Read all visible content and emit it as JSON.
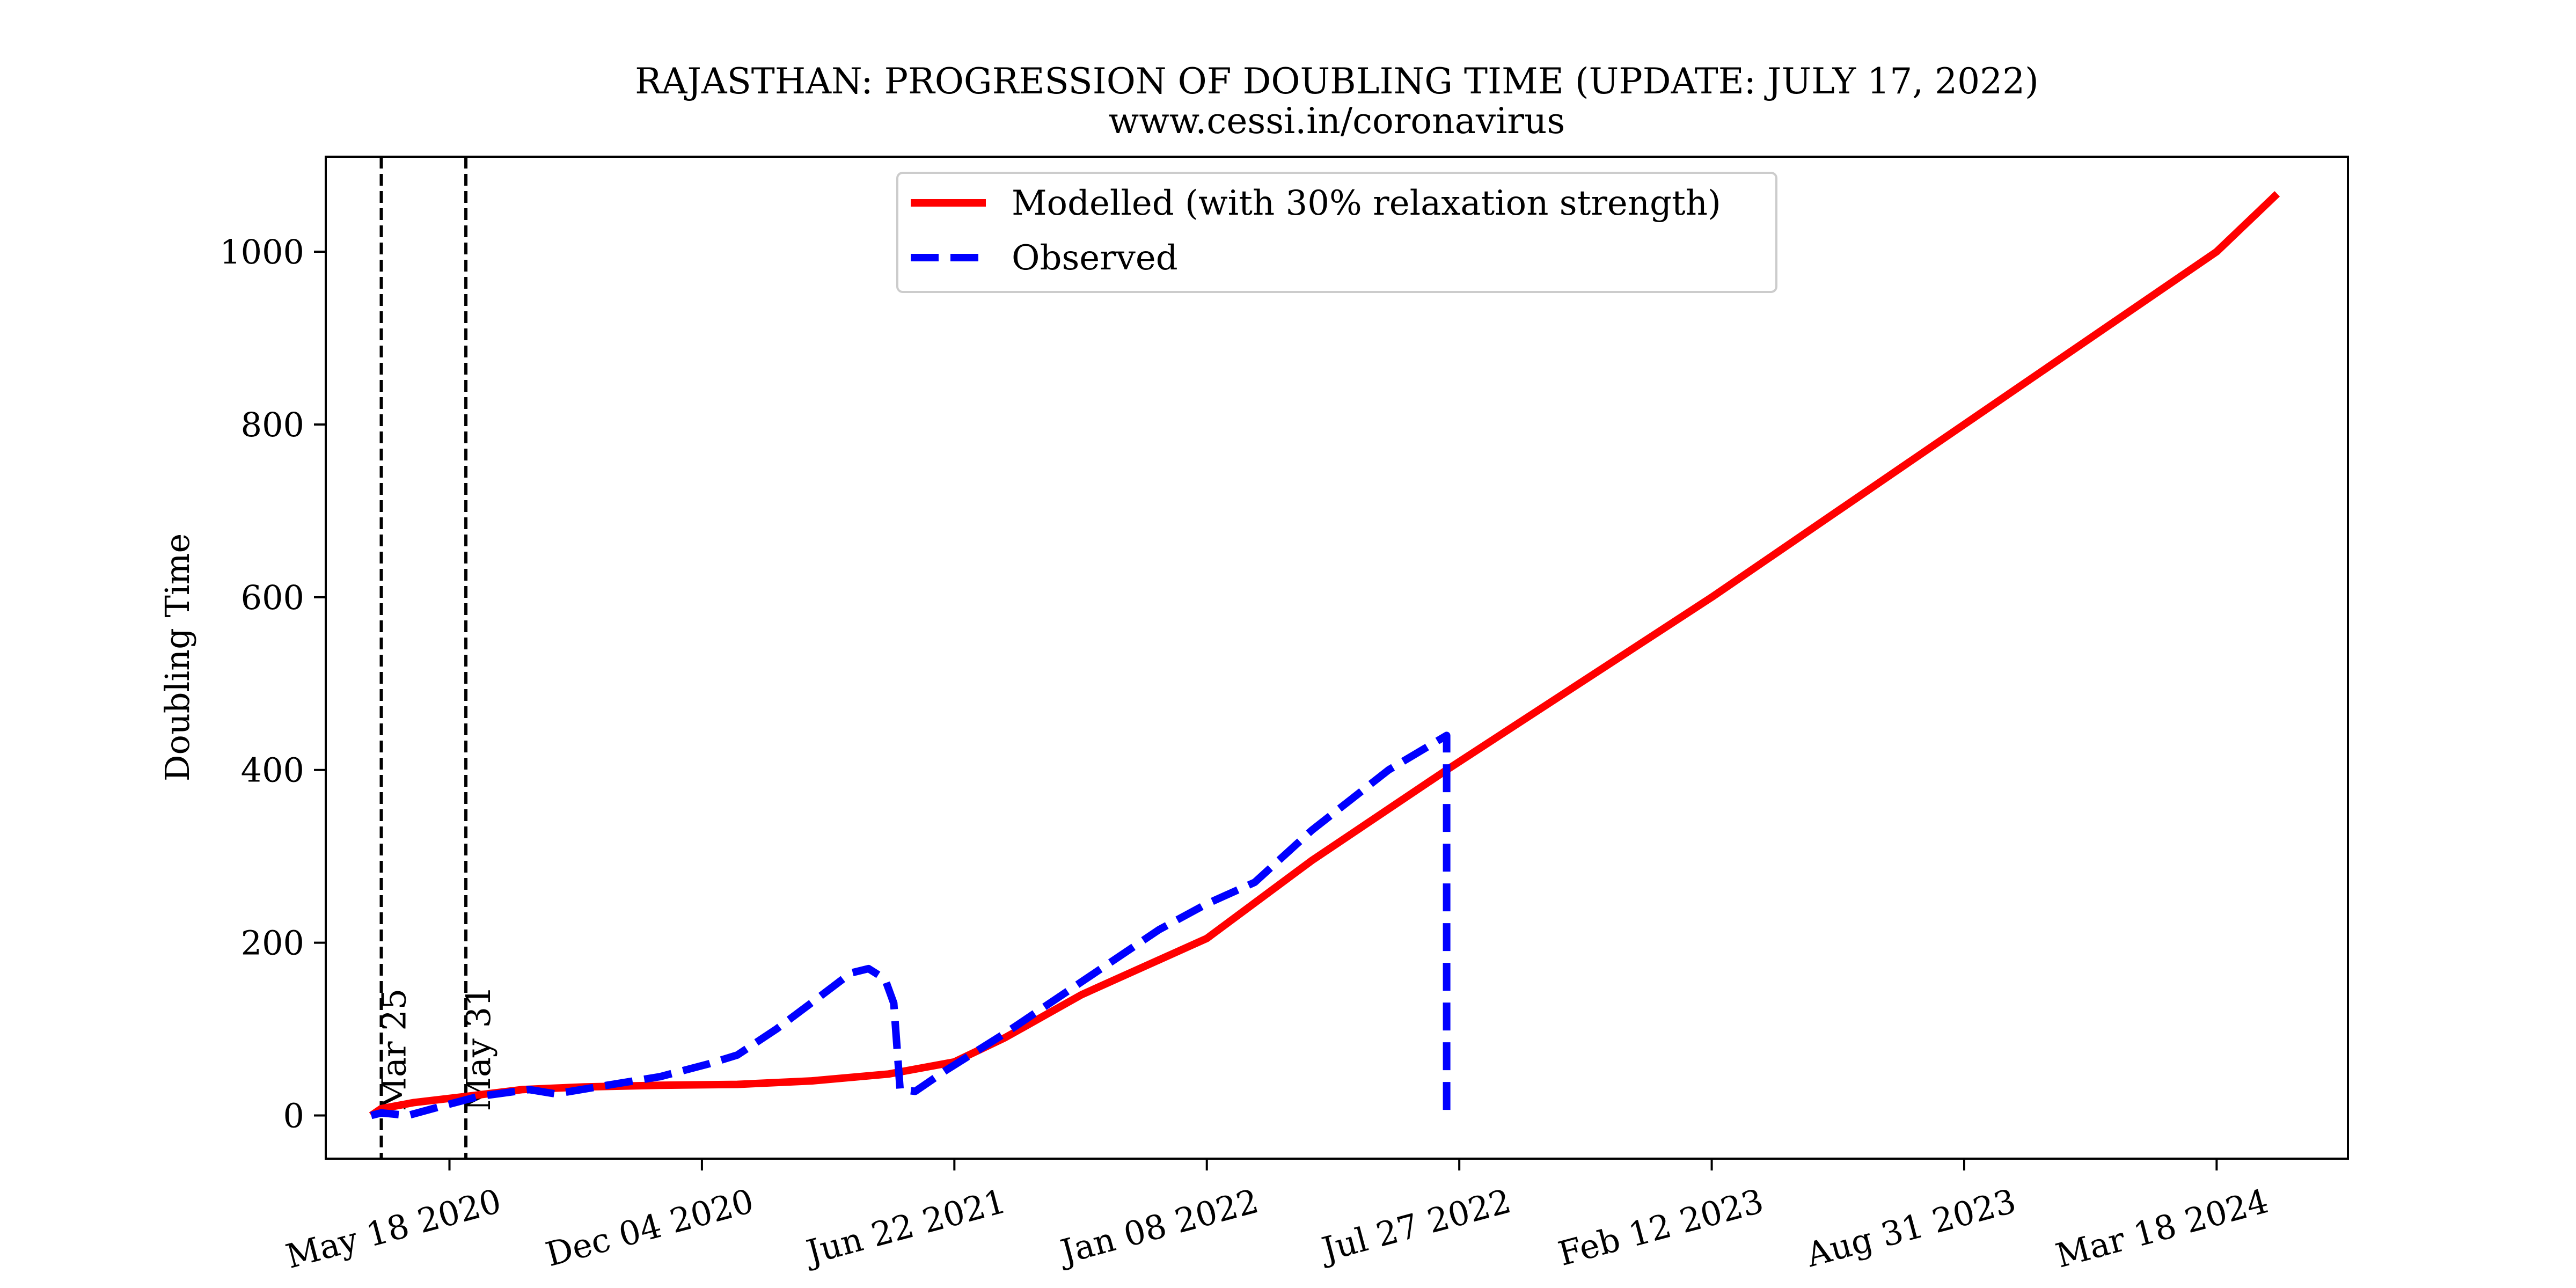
{
  "chart_data": {
    "type": "line",
    "title": "RAJASTHAN: PROGRESSION OF DOUBLING TIME (UPDATE: JULY 17, 2022)",
    "subtitle": "www.cessi.in/coronavirus",
    "xlabel": "",
    "ylabel": "Doubling Time",
    "x_type": "date",
    "xlim": [
      "2020-02-10",
      "2024-06-30"
    ],
    "ylim": [
      -50,
      1110
    ],
    "xticks": [
      {
        "date": "2020-05-18",
        "label": "May 18 2020"
      },
      {
        "date": "2020-12-04",
        "label": "Dec 04 2020"
      },
      {
        "date": "2021-06-22",
        "label": "Jun 22 2021"
      },
      {
        "date": "2022-01-08",
        "label": "Jan 08 2022"
      },
      {
        "date": "2022-07-27",
        "label": "Jul 27 2022"
      },
      {
        "date": "2023-02-12",
        "label": "Feb 12 2023"
      },
      {
        "date": "2023-08-31",
        "label": "Aug 31 2023"
      },
      {
        "date": "2024-03-18",
        "label": "Mar 18 2024"
      }
    ],
    "yticks": [
      0,
      200,
      400,
      600,
      800,
      1000
    ],
    "grid": false,
    "legend_position": "top-center",
    "vlines": [
      {
        "date": "2020-03-25",
        "label": "Mar 25",
        "color": "#000000"
      },
      {
        "date": "2020-05-31",
        "label": "May 31",
        "color": "#000000"
      }
    ],
    "series": [
      {
        "name": "Modelled (with 30% relaxation strength)",
        "color": "#ff0000",
        "style": "solid",
        "points": [
          [
            "2020-03-17",
            0
          ],
          [
            "2020-03-25",
            8
          ],
          [
            "2020-04-20",
            15
          ],
          [
            "2020-05-31",
            22
          ],
          [
            "2020-07-15",
            30
          ],
          [
            "2020-09-01",
            33
          ],
          [
            "2020-11-01",
            35
          ],
          [
            "2021-01-01",
            36
          ],
          [
            "2021-03-01",
            40
          ],
          [
            "2021-05-01",
            48
          ],
          [
            "2021-06-22",
            62
          ],
          [
            "2021-08-01",
            90
          ],
          [
            "2021-10-01",
            140
          ],
          [
            "2022-01-08",
            205
          ],
          [
            "2022-04-01",
            295
          ],
          [
            "2022-07-17",
            400
          ],
          [
            "2023-02-12",
            600
          ],
          [
            "2023-08-31",
            800
          ],
          [
            "2024-03-18",
            1000
          ],
          [
            "2024-05-05",
            1067
          ]
        ]
      },
      {
        "name": "Observed",
        "color": "#0000ff",
        "style": "dashed",
        "points": [
          [
            "2020-03-17",
            0
          ],
          [
            "2020-03-25",
            3
          ],
          [
            "2020-04-15",
            0
          ],
          [
            "2020-05-10",
            10
          ],
          [
            "2020-06-10",
            22
          ],
          [
            "2020-07-20",
            30
          ],
          [
            "2020-08-10",
            25
          ],
          [
            "2020-09-20",
            35
          ],
          [
            "2020-11-01",
            45
          ],
          [
            "2020-12-10",
            60
          ],
          [
            "2021-01-01",
            70
          ],
          [
            "2021-02-01",
            100
          ],
          [
            "2021-03-05",
            135
          ],
          [
            "2021-04-01",
            165
          ],
          [
            "2021-04-15",
            170
          ],
          [
            "2021-04-28",
            158
          ],
          [
            "2021-05-05",
            130
          ],
          [
            "2021-05-10",
            30
          ],
          [
            "2021-05-22",
            28
          ],
          [
            "2021-06-15",
            52
          ],
          [
            "2021-08-01",
            95
          ],
          [
            "2021-10-01",
            155
          ],
          [
            "2021-12-01",
            215
          ],
          [
            "2022-01-08",
            245
          ],
          [
            "2022-02-15",
            270
          ],
          [
            "2022-04-01",
            330
          ],
          [
            "2022-06-01",
            400
          ],
          [
            "2022-07-17",
            440
          ],
          [
            "2022-07-17",
            0
          ]
        ]
      }
    ]
  }
}
